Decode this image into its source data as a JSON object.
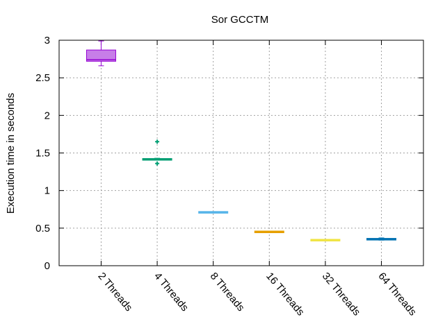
{
  "chart_data": {
    "type": "boxplot",
    "title": "Sor GCCTM",
    "xlabel": "",
    "ylabel": "Execution time in seconds",
    "ylim": [
      0,
      3
    ],
    "yticks": [
      0,
      0.5,
      1,
      1.5,
      2,
      2.5,
      3
    ],
    "ytick_labels": [
      "0",
      "0.5",
      "1",
      "1.5",
      "2",
      "2.5",
      "3"
    ],
    "grid": true,
    "categories": [
      "2 Threads",
      "4 Threads",
      "8 Threads",
      "16 Threads",
      "32 Threads",
      "64 Threads"
    ],
    "boxes": [
      {
        "category": "2 Threads",
        "min": 2.66,
        "q1": 2.72,
        "median": 2.74,
        "q3": 2.87,
        "max": 2.99,
        "outliers": [],
        "color": "#9400d3",
        "fill": "#c77ee8"
      },
      {
        "category": "4 Threads",
        "min": 1.41,
        "q1": 1.41,
        "median": 1.42,
        "q3": 1.42,
        "max": 1.43,
        "outliers": [
          1.65,
          1.36
        ],
        "color": "#009e73",
        "fill": "#009e73"
      },
      {
        "category": "8 Threads",
        "min": 0.71,
        "q1": 0.71,
        "median": 0.71,
        "q3": 0.71,
        "max": 0.71,
        "outliers": [],
        "color": "#56b4e9",
        "fill": "#56b4e9"
      },
      {
        "category": "16 Threads",
        "min": 0.44,
        "q1": 0.445,
        "median": 0.45,
        "q3": 0.455,
        "max": 0.46,
        "outliers": [],
        "color": "#e69f00",
        "fill": "#e69f00"
      },
      {
        "category": "32 Threads",
        "min": 0.34,
        "q1": 0.34,
        "median": 0.34,
        "q3": 0.34,
        "max": 0.34,
        "outliers": [],
        "color": "#f0e442",
        "fill": "#f0e442"
      },
      {
        "category": "64 Threads",
        "min": 0.34,
        "q1": 0.345,
        "median": 0.355,
        "q3": 0.36,
        "max": 0.37,
        "outliers": [],
        "color": "#0072b2",
        "fill": "#0072b2"
      }
    ]
  }
}
